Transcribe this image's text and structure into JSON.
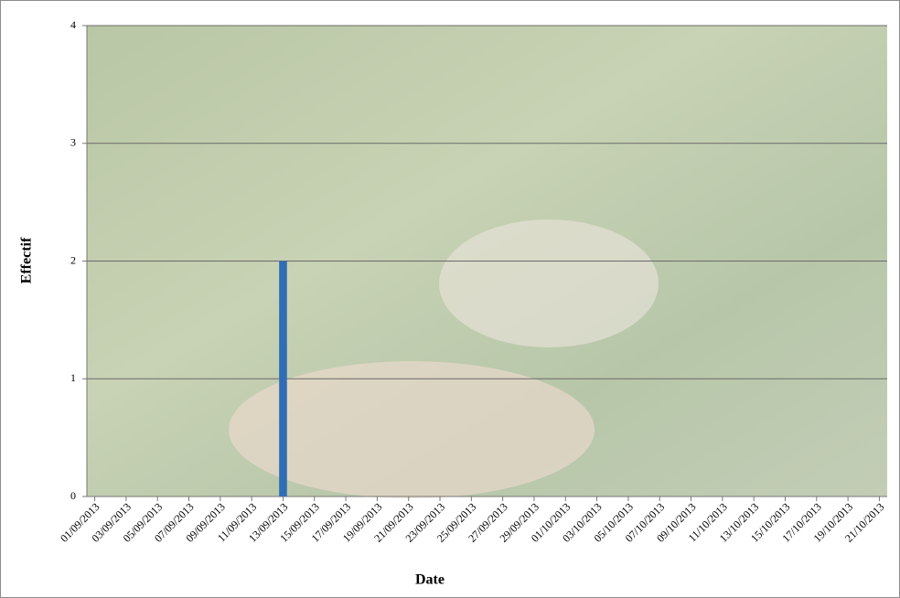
{
  "chart_data": {
    "type": "bar",
    "x_label": "Date",
    "y_label": "Effectif",
    "categories": [
      "01/09/2013",
      null,
      "03/09/2013",
      null,
      "05/09/2013",
      null,
      "07/09/2013",
      null,
      "09/09/2013",
      null,
      "11/09/2013",
      null,
      "13/09/2013",
      null,
      "15/09/2013",
      null,
      "17/09/2013",
      null,
      "19/09/2013",
      null,
      "21/09/2013",
      null,
      "23/09/2013",
      null,
      "25/09/2013",
      null,
      "27/09/2013",
      null,
      "29/09/2013",
      null,
      "01/10/2013",
      null,
      "03/10/2013",
      null,
      "05/10/2013",
      null,
      "07/10/2013",
      null,
      "09/10/2013",
      null,
      "11/10/2013",
      null,
      "13/10/2013",
      null,
      "15/10/2013",
      null,
      "17/10/2013",
      null,
      "19/10/2013",
      null,
      "21/10/2013"
    ],
    "values": [
      0,
      0,
      0,
      0,
      0,
      0,
      0,
      0,
      0,
      0,
      0,
      0,
      2,
      0,
      0,
      0,
      0,
      0,
      0,
      0,
      0,
      0,
      0,
      0,
      0,
      0,
      0,
      0,
      0,
      0,
      0,
      0,
      0,
      0,
      0,
      0,
      0,
      0,
      0,
      0,
      0,
      0,
      0,
      0,
      0,
      0,
      0,
      0,
      0,
      0,
      0
    ],
    "color": "#2f6db5",
    "ylim": [
      0,
      4
    ],
    "yticks": [
      0,
      1,
      2,
      3,
      4
    ],
    "grid": true
  }
}
